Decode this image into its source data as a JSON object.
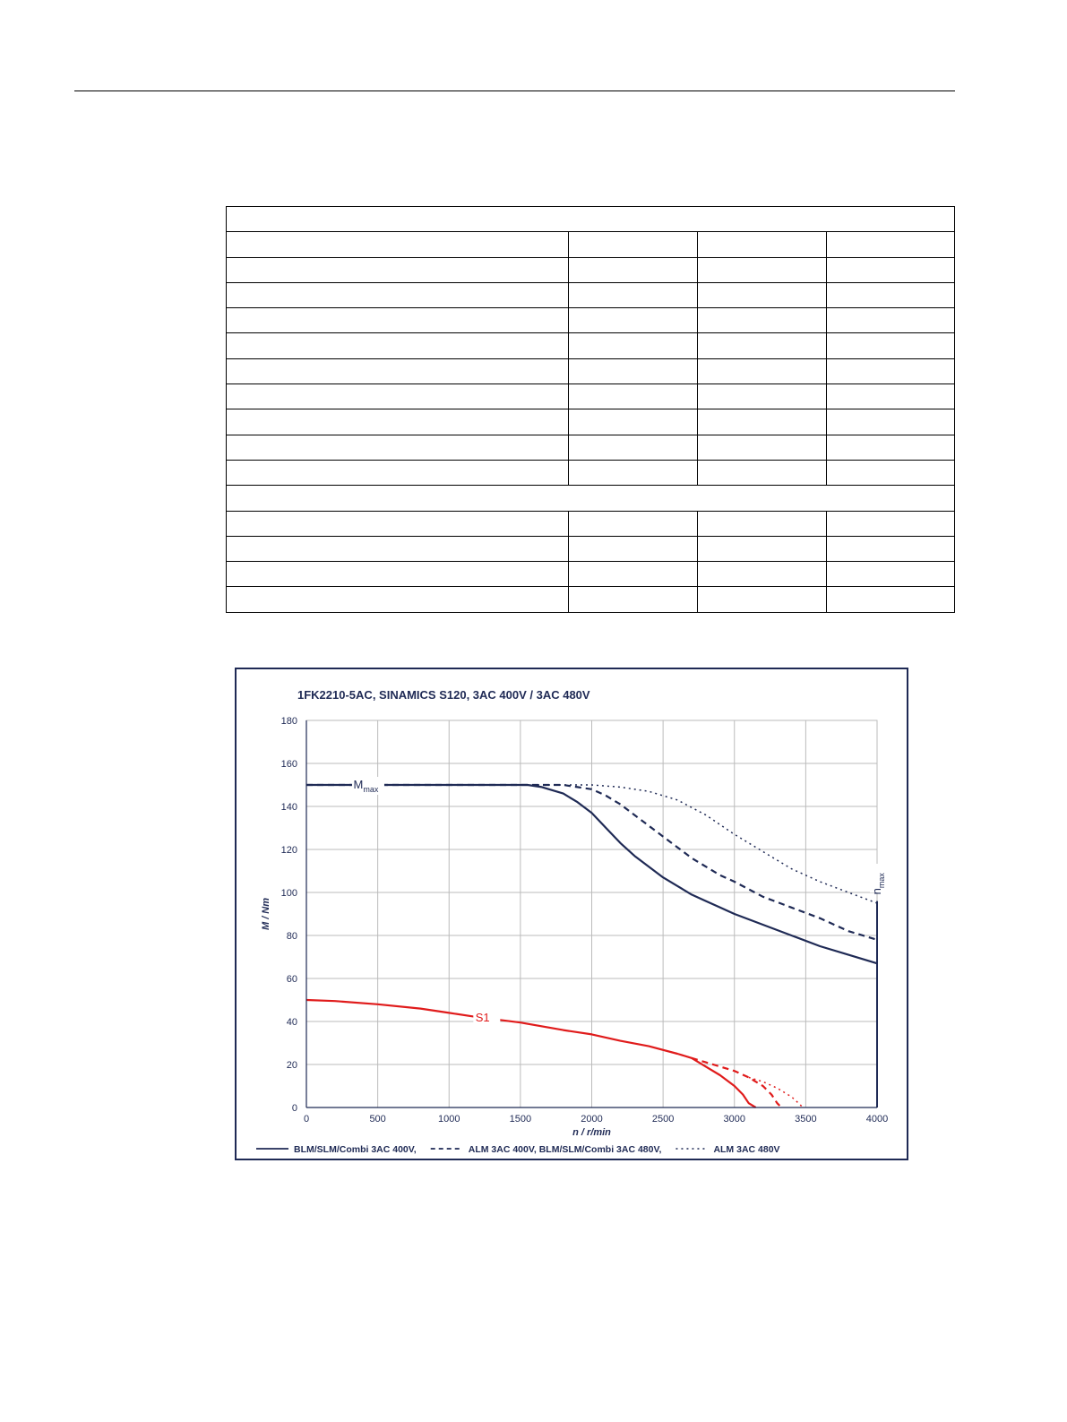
{
  "page": {
    "table": {
      "rows": [
        {
          "type": "full"
        },
        {
          "type": "split"
        },
        {
          "type": "split"
        },
        {
          "type": "split"
        },
        {
          "type": "split"
        },
        {
          "type": "split"
        },
        {
          "type": "split"
        },
        {
          "type": "split"
        },
        {
          "type": "split"
        },
        {
          "type": "split"
        },
        {
          "type": "split"
        },
        {
          "type": "full"
        },
        {
          "type": "split"
        },
        {
          "type": "split"
        },
        {
          "type": "split"
        },
        {
          "type": "split"
        }
      ]
    }
  },
  "chart_data": {
    "type": "line",
    "title": "1FK2210-5AC,  SINAMICS S120,  3AC 400V / 3AC 480V",
    "xlabel": "n / r/min",
    "ylabel": "M / Nm",
    "xlim": [
      0,
      4000
    ],
    "ylim": [
      0,
      180
    ],
    "xticks": [
      0,
      500,
      1000,
      1500,
      2000,
      2500,
      3000,
      3500,
      4000
    ],
    "yticks": [
      0,
      20,
      40,
      60,
      80,
      100,
      120,
      140,
      160,
      180
    ],
    "grid": true,
    "legend_position": "bottom",
    "legend": [
      {
        "label": "BLM/SLM/Combi 3AC 400V,",
        "style": "solid"
      },
      {
        "label": "ALM 3AC 400V, BLM/SLM/Combi 3AC 480V,",
        "style": "dashed"
      },
      {
        "label": "ALM 3AC 480V",
        "style": "dotted"
      }
    ],
    "annotations": {
      "mmax": {
        "main": "M",
        "sub": "max",
        "color": "#1f2a55"
      },
      "nmax": {
        "main": "n",
        "sub": "max",
        "color": "#1f2a55"
      },
      "s1": {
        "text": "S1",
        "color": "#e01b1b"
      }
    },
    "colors": {
      "mmax_curves": "#1f2a55",
      "s1_curves": "#e01b1b",
      "grid": "#bbbbbb",
      "frame": "#1f2a55"
    },
    "series": [
      {
        "group": "mmax",
        "style": "solid",
        "points": [
          [
            0,
            150
          ],
          [
            1550,
            150
          ],
          [
            1650,
            149
          ],
          [
            1800,
            146
          ],
          [
            1900,
            142
          ],
          [
            2000,
            137
          ],
          [
            2100,
            130
          ],
          [
            2200,
            123
          ],
          [
            2300,
            117
          ],
          [
            2400,
            112
          ],
          [
            2500,
            107
          ],
          [
            2600,
            103
          ],
          [
            2700,
            99
          ],
          [
            2800,
            96
          ],
          [
            2900,
            93
          ],
          [
            3000,
            90
          ],
          [
            3200,
            85
          ],
          [
            3400,
            80
          ],
          [
            3600,
            75
          ],
          [
            3800,
            71
          ],
          [
            4000,
            67
          ]
        ]
      },
      {
        "group": "mmax",
        "style": "dashed",
        "points": [
          [
            0,
            150
          ],
          [
            1800,
            150
          ],
          [
            1900,
            149
          ],
          [
            2000,
            148
          ],
          [
            2100,
            145
          ],
          [
            2200,
            141
          ],
          [
            2300,
            136
          ],
          [
            2400,
            131
          ],
          [
            2500,
            126
          ],
          [
            2600,
            121
          ],
          [
            2700,
            116
          ],
          [
            2800,
            112
          ],
          [
            2900,
            108
          ],
          [
            3000,
            105
          ],
          [
            3200,
            98
          ],
          [
            3400,
            93
          ],
          [
            3600,
            88
          ],
          [
            3800,
            82
          ],
          [
            4000,
            78
          ]
        ]
      },
      {
        "group": "mmax",
        "style": "dotted",
        "points": [
          [
            0,
            150
          ],
          [
            2000,
            150
          ],
          [
            2200,
            149
          ],
          [
            2400,
            147
          ],
          [
            2600,
            143
          ],
          [
            2800,
            136
          ],
          [
            3000,
            127
          ],
          [
            3200,
            119
          ],
          [
            3400,
            111
          ],
          [
            3600,
            105
          ],
          [
            3800,
            100
          ],
          [
            4000,
            95
          ]
        ]
      },
      {
        "group": "s1",
        "style": "solid",
        "points": [
          [
            0,
            50
          ],
          [
            200,
            49.5
          ],
          [
            500,
            48
          ],
          [
            800,
            46
          ],
          [
            1000,
            44
          ],
          [
            1200,
            42
          ],
          [
            1500,
            39.5
          ],
          [
            1800,
            36
          ],
          [
            2000,
            34
          ],
          [
            2200,
            31
          ],
          [
            2400,
            28.5
          ],
          [
            2600,
            25
          ],
          [
            2700,
            23
          ],
          [
            2800,
            19
          ],
          [
            2900,
            15
          ],
          [
            3000,
            10
          ],
          [
            3060,
            6
          ],
          [
            3100,
            2
          ],
          [
            3150,
            0
          ]
        ]
      },
      {
        "group": "s1",
        "style": "dashed",
        "points": [
          [
            2700,
            23
          ],
          [
            2800,
            21
          ],
          [
            2900,
            19
          ],
          [
            3000,
            17
          ],
          [
            3100,
            14
          ],
          [
            3200,
            10
          ],
          [
            3260,
            6
          ],
          [
            3300,
            2
          ],
          [
            3330,
            0
          ]
        ]
      },
      {
        "group": "s1",
        "style": "dotted",
        "points": [
          [
            3100,
            14
          ],
          [
            3200,
            12
          ],
          [
            3300,
            9
          ],
          [
            3400,
            5
          ],
          [
            3450,
            2
          ],
          [
            3480,
            0
          ]
        ]
      }
    ]
  }
}
